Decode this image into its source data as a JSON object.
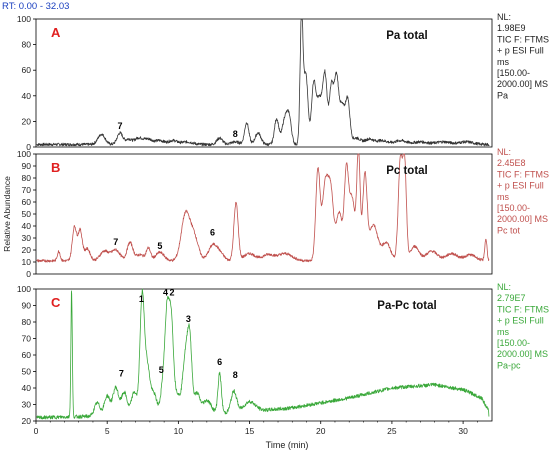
{
  "header": {
    "rt_label": "RT: 0.00 - 32.03"
  },
  "chart_data": [
    {
      "type": "line",
      "panel_letter": "A",
      "title": "Pa total",
      "color": "#333333",
      "letter_color": "#e02020",
      "xlim": [
        0,
        32.03
      ],
      "ylim": [
        0,
        100
      ],
      "ytick_labels": [
        "0",
        "20",
        "40",
        "60",
        "80",
        "100"
      ],
      "nl_lines": [
        "NL:",
        "1.98E9",
        "TIC F: FTMS",
        "+ p ESI Full",
        "ms",
        "[150.00-",
        "2000.00]  MS",
        "Pa"
      ],
      "baseline": 2,
      "peaks": [
        [
          4.6,
          8,
          0.25
        ],
        [
          5.9,
          9,
          0.2
        ],
        [
          6.5,
          4,
          0.2
        ],
        [
          7.2,
          5,
          0.3
        ],
        [
          7.9,
          4,
          0.3
        ],
        [
          8.7,
          3,
          0.3
        ],
        [
          9.6,
          3,
          0.3
        ],
        [
          10.6,
          2,
          0.4
        ],
        [
          12.9,
          5,
          0.2
        ],
        [
          14.0,
          2,
          0.3
        ],
        [
          14.8,
          17,
          0.15
        ],
        [
          15.6,
          9,
          0.2
        ],
        [
          16.9,
          20,
          0.15
        ],
        [
          17.5,
          21,
          0.2
        ],
        [
          17.8,
          17,
          0.15
        ],
        [
          18.65,
          98,
          0.1
        ],
        [
          18.95,
          55,
          0.15
        ],
        [
          19.5,
          45,
          0.15
        ],
        [
          19.9,
          35,
          0.2
        ],
        [
          20.3,
          52,
          0.15
        ],
        [
          20.75,
          45,
          0.15
        ],
        [
          21.1,
          49,
          0.15
        ],
        [
          21.5,
          30,
          0.2
        ],
        [
          21.9,
          32,
          0.15
        ],
        [
          22.5,
          5,
          0.3
        ],
        [
          23.4,
          4,
          0.3
        ],
        [
          24.3,
          3,
          0.4
        ],
        [
          25.6,
          3,
          0.4
        ],
        [
          27.0,
          2,
          0.5
        ],
        [
          28.6,
          2,
          0.5
        ],
        [
          30.2,
          2,
          0.5
        ]
      ],
      "annotations": [
        {
          "label": "7",
          "x": 5.9,
          "y": 14
        },
        {
          "label": "8",
          "x": 14.0,
          "y": 8
        }
      ]
    },
    {
      "type": "line",
      "panel_letter": "B",
      "title": "Pc total",
      "color": "#c0504d",
      "letter_color": "#e02020",
      "xlim": [
        0,
        32.03
      ],
      "ylim": [
        0,
        100
      ],
      "ytick_labels": [
        "0",
        "10",
        "20",
        "30",
        "40",
        "50",
        "60",
        "70",
        "80",
        "90",
        "100"
      ],
      "ylabel": "Relative Abundance",
      "nl_lines": [
        "NL:",
        "2.45E8",
        "TIC F: FTMS",
        "+ p ESI Full",
        "ms",
        "[150.00-",
        "2000.00]  MS",
        "Pc tot"
      ],
      "baseline": 11,
      "peaks": [
        [
          1.6,
          8,
          0.1
        ],
        [
          2.7,
          28,
          0.15
        ],
        [
          3.1,
          25,
          0.15
        ],
        [
          3.6,
          10,
          0.2
        ],
        [
          4.8,
          8,
          0.3
        ],
        [
          5.6,
          9,
          0.3
        ],
        [
          6.6,
          15,
          0.2
        ],
        [
          7.3,
          5,
          0.3
        ],
        [
          7.9,
          10,
          0.15
        ],
        [
          8.7,
          7,
          0.3
        ],
        [
          10.5,
          38,
          0.3
        ],
        [
          11.1,
          20,
          0.3
        ],
        [
          12.4,
          12,
          0.3
        ],
        [
          12.9,
          6,
          0.3
        ],
        [
          14.05,
          48,
          0.15
        ],
        [
          15.0,
          6,
          0.4
        ],
        [
          16.3,
          5,
          0.4
        ],
        [
          17.5,
          6,
          0.5
        ],
        [
          19.8,
          75,
          0.15
        ],
        [
          20.3,
          60,
          0.2
        ],
        [
          20.7,
          57,
          0.2
        ],
        [
          21.3,
          40,
          0.2
        ],
        [
          21.8,
          72,
          0.15
        ],
        [
          22.2,
          52,
          0.2
        ],
        [
          22.65,
          89,
          0.12
        ],
        [
          23.1,
          70,
          0.15
        ],
        [
          23.7,
          30,
          0.3
        ],
        [
          24.6,
          15,
          0.3
        ],
        [
          25.6,
          85,
          0.15
        ],
        [
          25.9,
          75,
          0.12
        ],
        [
          26.6,
          12,
          0.3
        ],
        [
          27.8,
          8,
          0.4
        ],
        [
          29.2,
          6,
          0.4
        ],
        [
          30.5,
          5,
          0.4
        ],
        [
          31.6,
          18,
          0.08
        ]
      ],
      "annotations": [
        {
          "label": "7",
          "x": 5.6,
          "y": 24
        },
        {
          "label": "5",
          "x": 8.7,
          "y": 21
        },
        {
          "label": "6",
          "x": 12.4,
          "y": 32
        }
      ]
    },
    {
      "type": "line",
      "panel_letter": "C",
      "title": "Pa-Pc total",
      "color": "#3aa83a",
      "letter_color": "#e02020",
      "xlim": [
        0,
        32.03
      ],
      "ylim": [
        20,
        100
      ],
      "ytick_labels": [
        "20",
        "30",
        "40",
        "50",
        "60",
        "70",
        "80",
        "90",
        "100"
      ],
      "nl_lines": [
        "NL:",
        "2.79E7",
        "TIC F: FTMS",
        "+ p ESI Full",
        "ms",
        "[150.00-",
        "2000.00]  MS",
        "Pa-pc"
      ],
      "baseline": 22,
      "peaks": [
        [
          2.5,
          77,
          0.05
        ],
        [
          4.3,
          8,
          0.2
        ],
        [
          5.0,
          12,
          0.2
        ],
        [
          5.6,
          17,
          0.2
        ],
        [
          6.2,
          14,
          0.2
        ],
        [
          6.9,
          14,
          0.2
        ],
        [
          7.45,
          68,
          0.15
        ],
        [
          7.8,
          30,
          0.2
        ],
        [
          8.3,
          12,
          0.2
        ],
        [
          8.9,
          17,
          0.15
        ],
        [
          9.2,
          59,
          0.15
        ],
        [
          9.5,
          55,
          0.15
        ],
        [
          9.9,
          12,
          0.2
        ],
        [
          10.5,
          35,
          0.2
        ],
        [
          10.8,
          40,
          0.15
        ],
        [
          11.3,
          12,
          0.2
        ],
        [
          12.0,
          8,
          0.3
        ],
        [
          12.9,
          24,
          0.12
        ],
        [
          13.9,
          13,
          0.2
        ],
        [
          15.0,
          6,
          0.4
        ]
      ],
      "trend": [
        [
          0,
          0
        ],
        [
          14,
          3
        ],
        [
          18,
          6
        ],
        [
          22,
          12
        ],
        [
          25,
          18
        ],
        [
          28,
          20
        ],
        [
          30,
          17
        ],
        [
          31.3,
          12
        ],
        [
          31.8,
          4
        ]
      ],
      "annotations": [
        {
          "label": "1",
          "x": 7.4,
          "y": 92
        },
        {
          "label": "4",
          "x": 9.1,
          "y": 96
        },
        {
          "label": "2",
          "x": 9.55,
          "y": 96
        },
        {
          "label": "3",
          "x": 10.7,
          "y": 80
        },
        {
          "label": "7",
          "x": 6.0,
          "y": 47
        },
        {
          "label": "5",
          "x": 8.8,
          "y": 49
        },
        {
          "label": "6",
          "x": 12.9,
          "y": 54
        },
        {
          "label": "8",
          "x": 14.0,
          "y": 46
        }
      ]
    }
  ],
  "x_axis": {
    "label": "Time (min)",
    "ticks": [
      0,
      5,
      10,
      15,
      20,
      25,
      30
    ],
    "tick_labels": [
      "0",
      "5",
      "10",
      "15",
      "20",
      "25",
      "30"
    ]
  }
}
